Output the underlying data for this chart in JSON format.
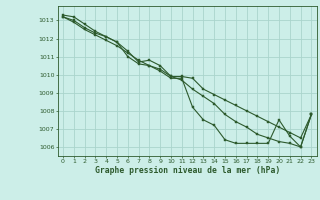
{
  "title": "Graphe pression niveau de la mer (hPa)",
  "background_color": "#cceee8",
  "grid_color": "#aad4cc",
  "line_color": "#2d5a2d",
  "marker_color": "#2d5a2d",
  "xlim": [
    -0.5,
    23.5
  ],
  "ylim": [
    1005.5,
    1013.8
  ],
  "yticks": [
    1006,
    1007,
    1008,
    1009,
    1010,
    1011,
    1012,
    1013
  ],
  "xticks": [
    0,
    1,
    2,
    3,
    4,
    5,
    6,
    7,
    8,
    9,
    10,
    11,
    12,
    13,
    14,
    15,
    16,
    17,
    18,
    19,
    20,
    21,
    22,
    23
  ],
  "series": [
    [
      1013.3,
      1013.2,
      1012.8,
      1012.4,
      1012.1,
      1011.8,
      1011.3,
      1010.7,
      1010.8,
      1010.5,
      1009.9,
      1009.9,
      1009.8,
      1009.2,
      1008.9,
      1008.6,
      1008.3,
      1008.0,
      1007.7,
      1007.4,
      1007.1,
      1006.8,
      1006.5,
      1007.8
    ],
    [
      1013.2,
      1013.0,
      1012.6,
      1012.3,
      1012.1,
      1011.8,
      1011.0,
      1010.6,
      1010.5,
      1010.2,
      1009.8,
      1009.8,
      1008.2,
      1007.5,
      1007.2,
      1006.4,
      1006.2,
      1006.2,
      1006.2,
      1006.2,
      1007.5,
      1006.6,
      1006.0,
      1007.8
    ],
    [
      1013.2,
      1012.9,
      1012.5,
      1012.2,
      1011.9,
      1011.6,
      1011.2,
      1010.8,
      1010.5,
      1010.3,
      1009.9,
      1009.7,
      1009.2,
      1008.8,
      1008.4,
      1007.8,
      1007.4,
      1007.1,
      1006.7,
      1006.5,
      1006.3,
      1006.2,
      1006.0,
      1007.8
    ]
  ]
}
